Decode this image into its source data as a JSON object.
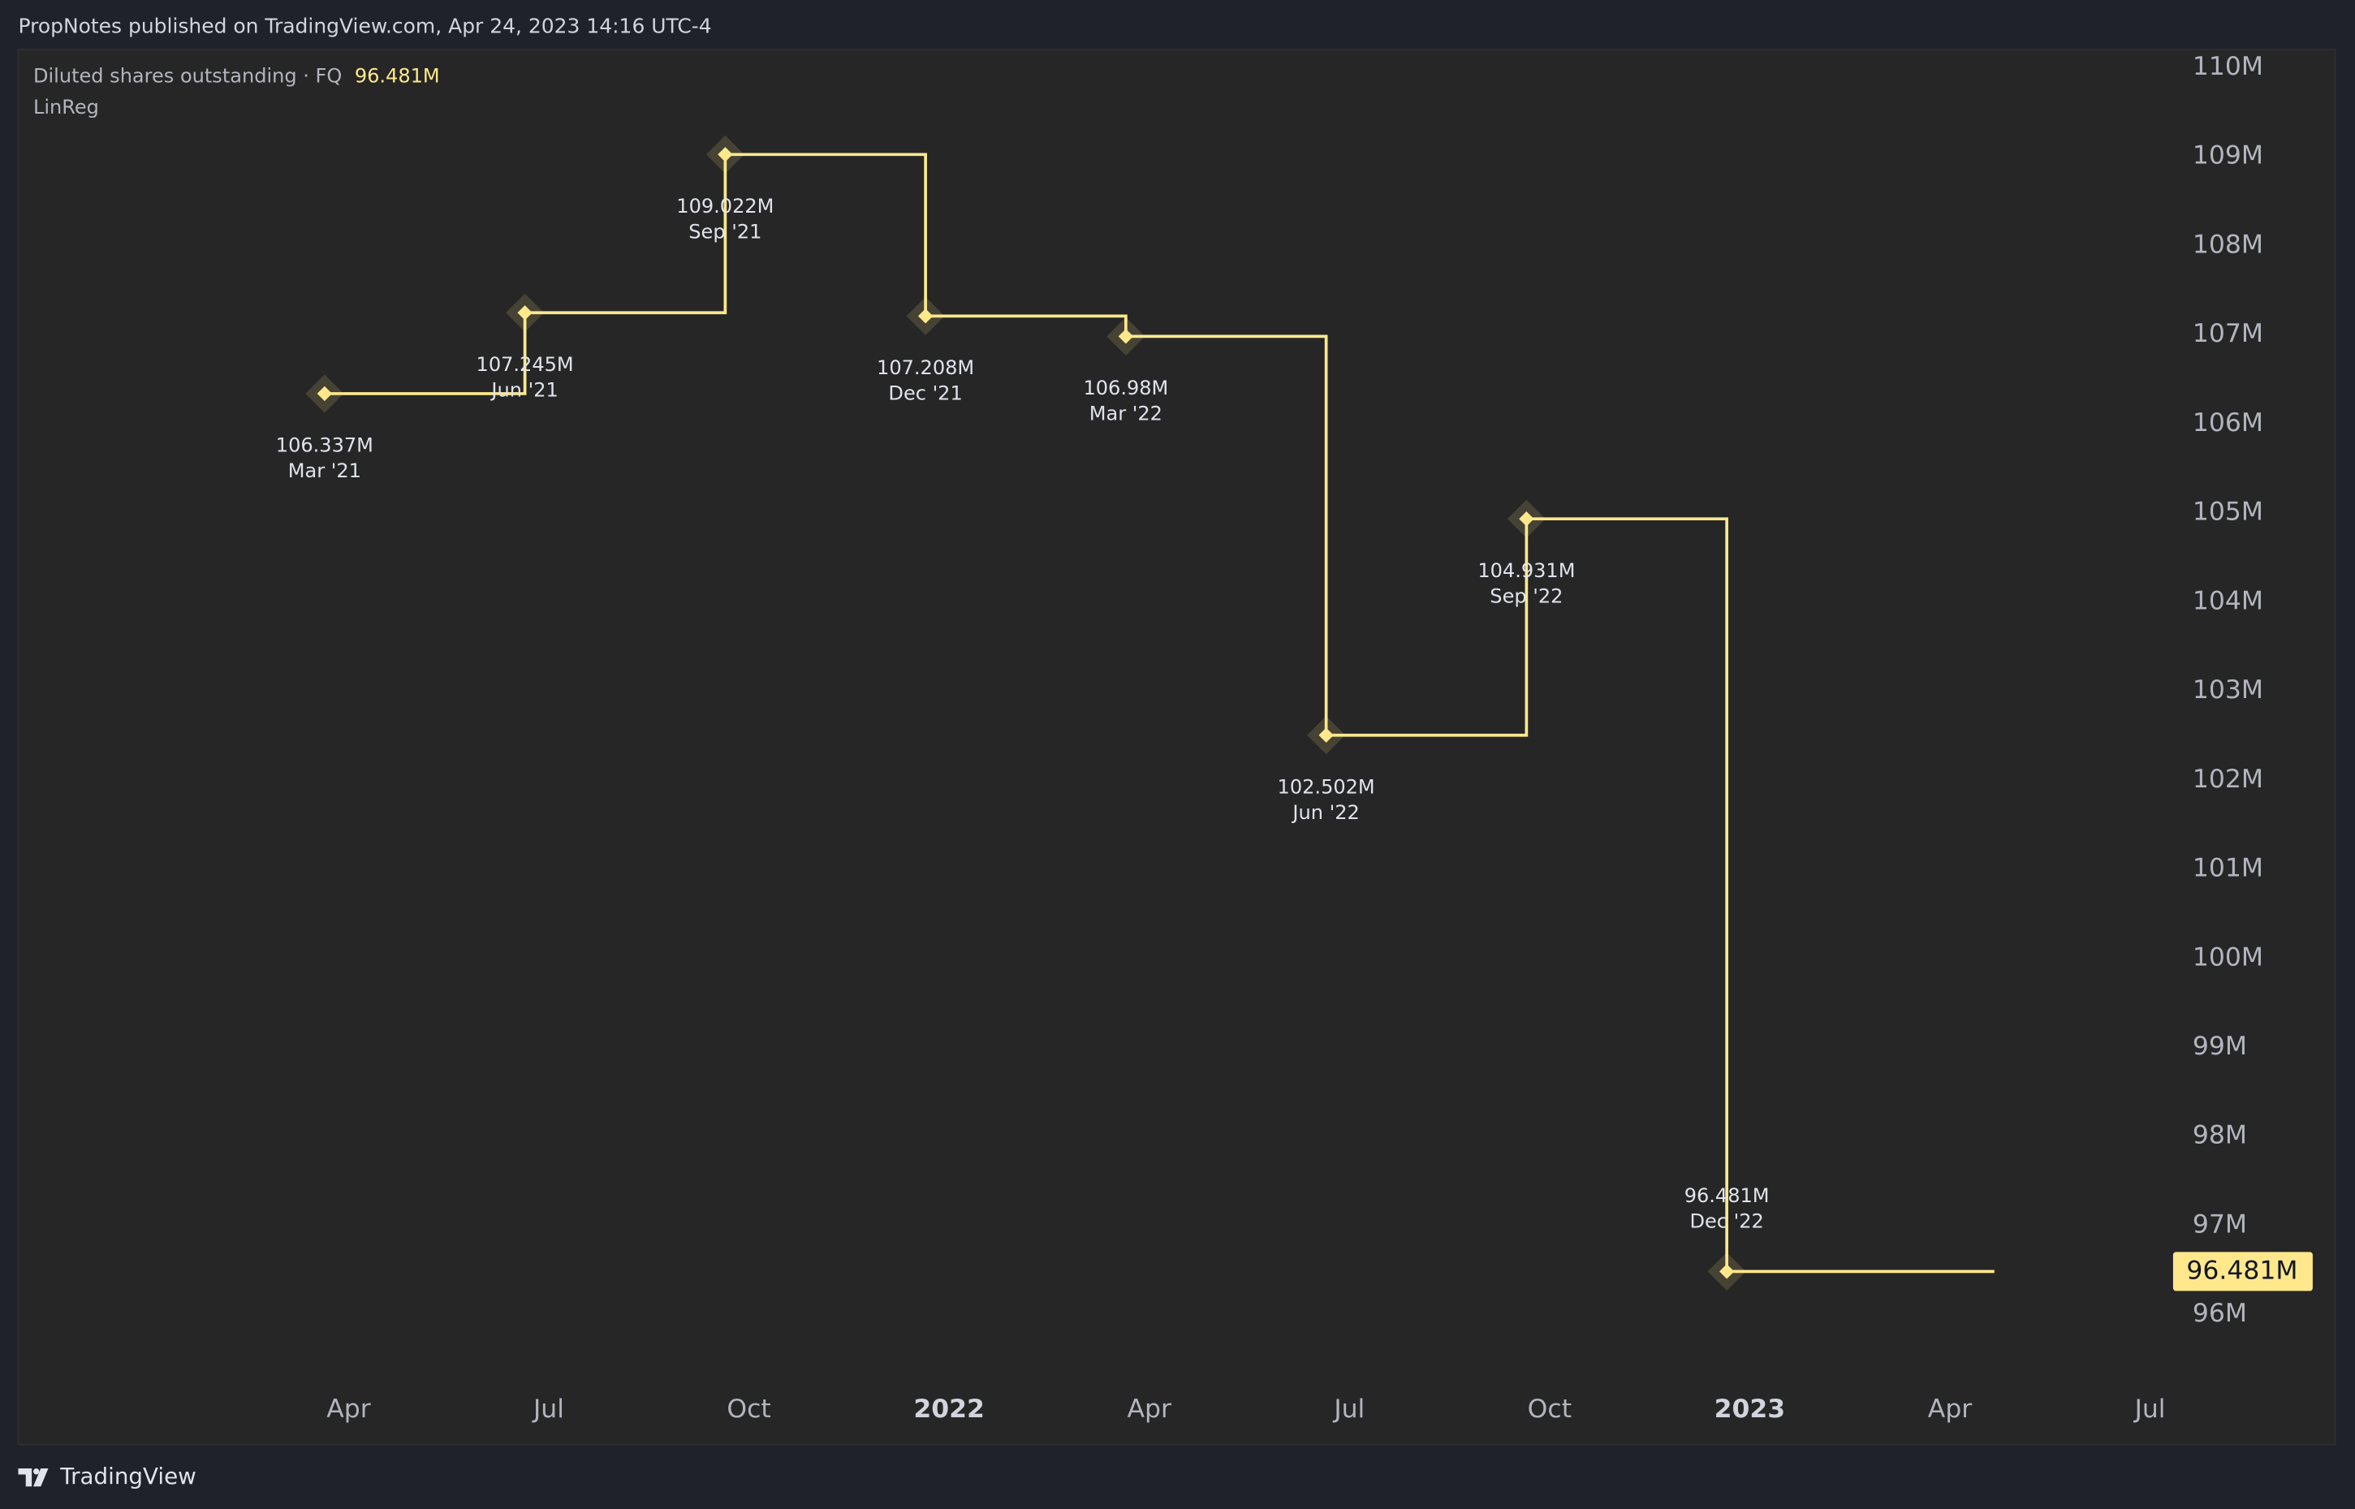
{
  "header": {
    "text": "PropNotes published on TradingView.com, Apr 24, 2023 14:16 UTC-4"
  },
  "chart_data": {
    "type": "step",
    "x": [
      "Mar '21",
      "Jun '21",
      "Sep '21",
      "Dec '21",
      "Mar '22",
      "Jun '22",
      "Sep '22",
      "Dec '22"
    ],
    "series": [
      {
        "name": "Diluted shares outstanding · FQ",
        "color": "#ffe88c",
        "values": [
          106.337,
          107.245,
          109.022,
          107.208,
          106.98,
          102.502,
          104.931,
          96.481
        ],
        "value_labels": [
          "106.337M",
          "107.245M",
          "109.022M",
          "107.208M",
          "106.98M",
          "102.502M",
          "104.931M",
          "96.481M"
        ]
      }
    ],
    "indicator": "LinReg",
    "ylim": [
      95.5,
      110.2
    ],
    "yticks": [
      {
        "value": 96,
        "label": "96M"
      },
      {
        "value": 97,
        "label": "97M"
      },
      {
        "value": 98,
        "label": "98M"
      },
      {
        "value": 99,
        "label": "99M"
      },
      {
        "value": 100,
        "label": "100M"
      },
      {
        "value": 101,
        "label": "101M"
      },
      {
        "value": 102,
        "label": "102M"
      },
      {
        "value": 103,
        "label": "103M"
      },
      {
        "value": 104,
        "label": "104M"
      },
      {
        "value": 105,
        "label": "105M"
      },
      {
        "value": 106,
        "label": "106M"
      },
      {
        "value": 107,
        "label": "107M"
      },
      {
        "value": 108,
        "label": "108M"
      },
      {
        "value": 109,
        "label": "109M"
      },
      {
        "value": 110,
        "label": "110M"
      }
    ],
    "xticks": [
      "Apr",
      "Jul",
      "Oct",
      "2022",
      "Apr",
      "Jul",
      "Oct",
      "2023",
      "Apr",
      "Jul"
    ]
  },
  "footer": {
    "brand": "TradingView"
  }
}
